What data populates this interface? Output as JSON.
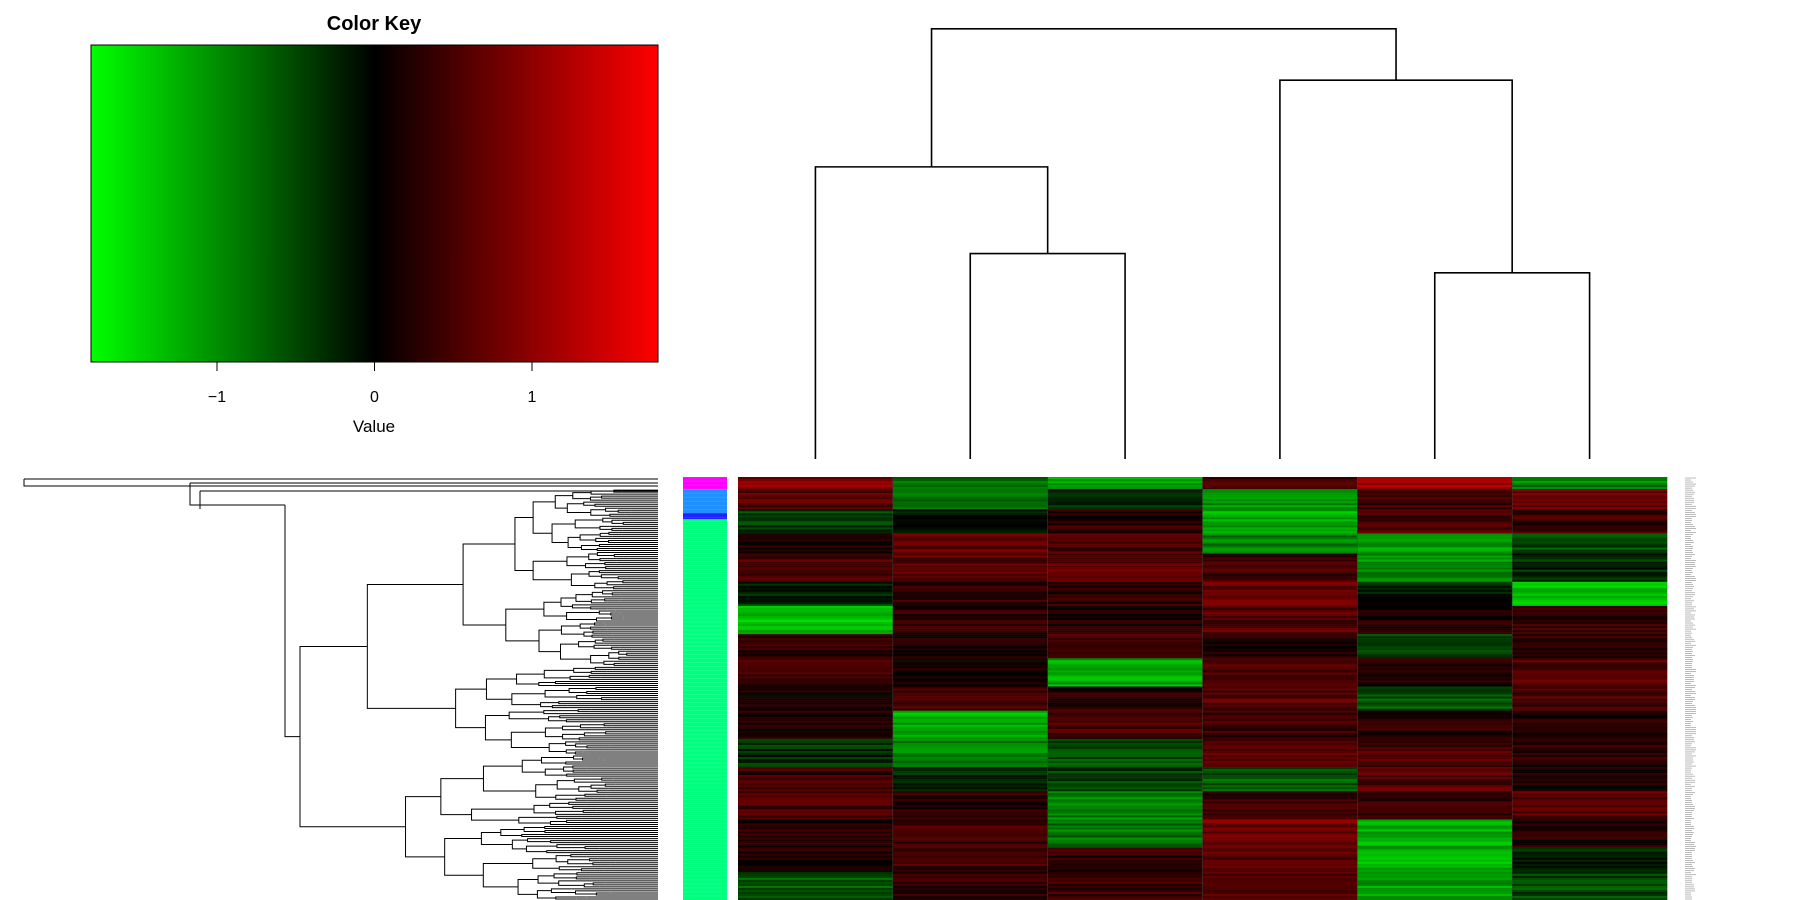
{
  "chart_data": {
    "type": "heatmap",
    "color_key": {
      "title": "Color Key",
      "xlabel": "Value",
      "range": [
        -1.8,
        1.8
      ],
      "ticks": [
        -1,
        0,
        1
      ],
      "tick_labels": [
        "−1",
        "0",
        "1"
      ],
      "colors": {
        "low": "#00ff00",
        "mid": "#000000",
        "high": "#ff0000"
      }
    },
    "columns": 6,
    "column_dendrogram": {
      "merges": [
        {
          "left": 1,
          "right": 2,
          "height": 0.64
        },
        {
          "left": 4,
          "right": 5,
          "height": 0.58
        },
        {
          "left": 0,
          "right": "m1",
          "height": 0.91
        },
        {
          "left": 3,
          "right": "m2",
          "height": 1.18
        },
        {
          "left": "m3",
          "right": "m4",
          "height": 1.34
        }
      ],
      "max_height": 1.38
    },
    "row_side_colors": {
      "palette": [
        "#ff00ff",
        "#1e90ff",
        "#2222ff",
        "#00ff7f"
      ],
      "groups": [
        {
          "color_index": 0,
          "fraction": 0.03
        },
        {
          "color_index": 1,
          "fraction": 0.055
        },
        {
          "color_index": 2,
          "fraction": 0.015
        },
        {
          "color_index": 3,
          "fraction": 0.9
        }
      ]
    },
    "row_blocks": [
      {
        "n": 6,
        "values": [
          0.9,
          -0.8,
          -1.2,
          0.5,
          1.1,
          -0.9
        ]
      },
      {
        "n": 10,
        "values": [
          0.6,
          -0.7,
          -0.3,
          -1.0,
          0.4,
          0.7
        ]
      },
      {
        "n": 12,
        "values": [
          -0.4,
          -0.2,
          0.3,
          -1.2,
          0.5,
          0.4
        ]
      },
      {
        "n": 10,
        "values": [
          0.2,
          0.7,
          0.5,
          -0.9,
          -1.1,
          -0.5
        ]
      },
      {
        "n": 14,
        "values": [
          0.5,
          0.6,
          0.6,
          0.4,
          -1.0,
          -0.3
        ]
      },
      {
        "n": 12,
        "values": [
          -0.3,
          0.4,
          0.3,
          0.7,
          -0.2,
          -1.3
        ]
      },
      {
        "n": 14,
        "values": [
          -1.3,
          0.3,
          0.2,
          0.6,
          0.2,
          0.4
        ]
      },
      {
        "n": 12,
        "values": [
          0.3,
          0.2,
          0.5,
          0.2,
          -0.4,
          0.3
        ]
      },
      {
        "n": 14,
        "values": [
          0.4,
          0.1,
          -1.2,
          0.5,
          0.2,
          0.6
        ]
      },
      {
        "n": 12,
        "values": [
          0.1,
          0.5,
          0.3,
          0.6,
          -0.6,
          0.5
        ]
      },
      {
        "n": 14,
        "values": [
          0.2,
          -1.2,
          0.5,
          0.4,
          0.3,
          0.2
        ]
      },
      {
        "n": 14,
        "values": [
          -0.3,
          -0.9,
          -0.5,
          0.6,
          0.5,
          0.3
        ]
      },
      {
        "n": 12,
        "values": [
          0.4,
          -0.2,
          -0.4,
          -0.6,
          0.6,
          0.2
        ]
      },
      {
        "n": 14,
        "values": [
          0.5,
          0.3,
          -0.9,
          0.4,
          0.4,
          0.6
        ]
      },
      {
        "n": 14,
        "values": [
          0.3,
          0.4,
          -0.8,
          0.8,
          -1.2,
          0.2
        ]
      },
      {
        "n": 12,
        "values": [
          0.2,
          0.5,
          0.3,
          0.6,
          -1.3,
          -0.2
        ]
      },
      {
        "n": 14,
        "values": [
          -0.6,
          0.3,
          0.4,
          0.5,
          -1.1,
          -0.5
        ]
      }
    ]
  }
}
